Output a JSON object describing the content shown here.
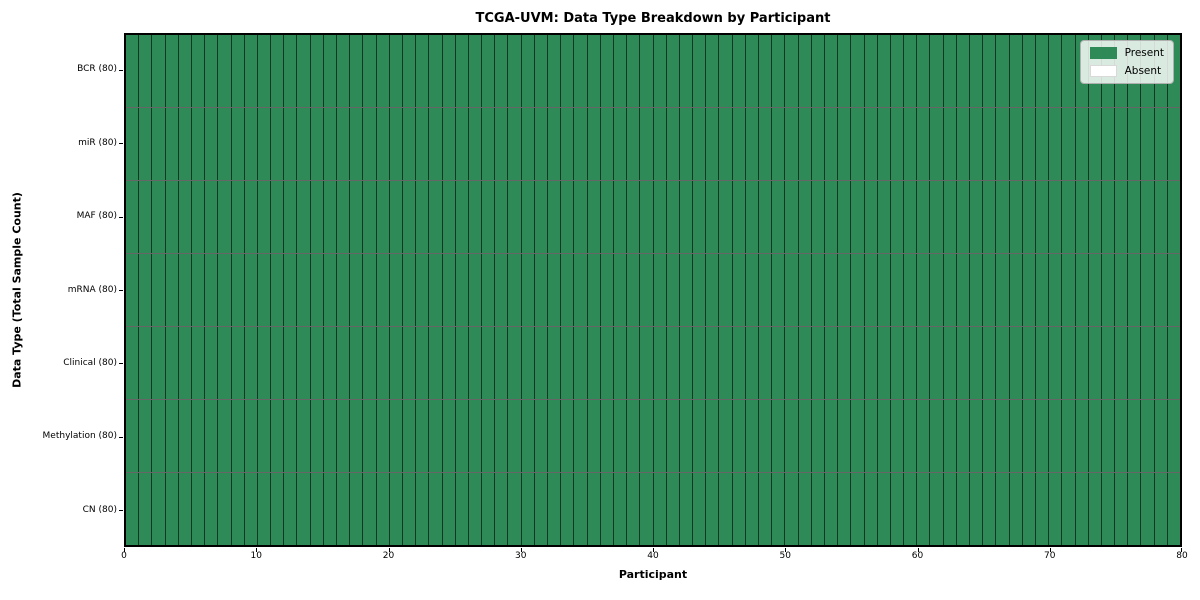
{
  "chart_data": {
    "type": "heatmap",
    "title": "TCGA-UVM: Data Type Breakdown by Participant",
    "xlabel": "Participant",
    "ylabel": "Data Type (Total Sample Count)",
    "x_range": [
      0,
      80
    ],
    "x_ticks": [
      0,
      10,
      20,
      30,
      40,
      50,
      60,
      70,
      80
    ],
    "n_participants": 80,
    "grid": "per-cell borders, no gridlines",
    "rows": [
      {
        "label": "BCR (80)",
        "data_type": "BCR",
        "total_samples": 80,
        "present_count": 80,
        "absent_count": 0
      },
      {
        "label": "miR (80)",
        "data_type": "miR",
        "total_samples": 80,
        "present_count": 80,
        "absent_count": 0
      },
      {
        "label": "MAF (80)",
        "data_type": "MAF",
        "total_samples": 80,
        "present_count": 80,
        "absent_count": 0
      },
      {
        "label": "mRNA (80)",
        "data_type": "mRNA",
        "total_samples": 80,
        "present_count": 80,
        "absent_count": 0
      },
      {
        "label": "Clinical (80)",
        "data_type": "Clinical",
        "total_samples": 80,
        "present_count": 80,
        "absent_count": 0
      },
      {
        "label": "Methylation (80)",
        "data_type": "Methylation",
        "total_samples": 80,
        "present_count": 80,
        "absent_count": 0
      },
      {
        "label": "CN (80)",
        "data_type": "CN",
        "total_samples": 80,
        "present_count": 80,
        "absent_count": 0
      }
    ],
    "legend": {
      "position": "upper right",
      "entries": [
        {
          "label": "Present",
          "color": "#2e8b57"
        },
        {
          "label": "Absent",
          "color": "#ffffff"
        }
      ]
    },
    "colors": {
      "present": "#2e8b57",
      "absent": "#ffffff",
      "cell_border": "rgba(0,0,0,0.6)",
      "spine": "#000000"
    }
  }
}
